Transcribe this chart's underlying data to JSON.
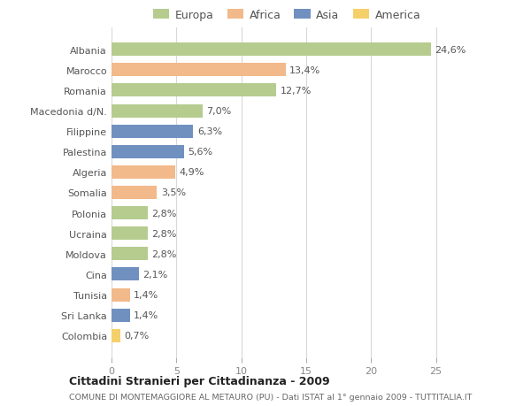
{
  "countries": [
    "Albania",
    "Marocco",
    "Romania",
    "Macedonia d/N.",
    "Filippine",
    "Palestina",
    "Algeria",
    "Somalia",
    "Polonia",
    "Ucraina",
    "Moldova",
    "Cina",
    "Tunisia",
    "Sri Lanka",
    "Colombia"
  ],
  "values": [
    24.6,
    13.4,
    12.7,
    7.0,
    6.3,
    5.6,
    4.9,
    3.5,
    2.8,
    2.8,
    2.8,
    2.1,
    1.4,
    1.4,
    0.7
  ],
  "labels": [
    "24,6%",
    "13,4%",
    "12,7%",
    "7,0%",
    "6,3%",
    "5,6%",
    "4,9%",
    "3,5%",
    "2,8%",
    "2,8%",
    "2,8%",
    "2,1%",
    "1,4%",
    "1,4%",
    "0,7%"
  ],
  "continents": [
    "Europa",
    "Africa",
    "Europa",
    "Europa",
    "Asia",
    "Asia",
    "Africa",
    "Africa",
    "Europa",
    "Europa",
    "Europa",
    "Asia",
    "Africa",
    "Asia",
    "America"
  ],
  "colors": {
    "Europa": "#b5cc8e",
    "Africa": "#f2b98a",
    "Asia": "#7090c0",
    "America": "#f5d06a"
  },
  "title": "Cittadini Stranieri per Cittadinanza - 2009",
  "subtitle": "COMUNE DI MONTEMAGGIORE AL METAURO (PU) - Dati ISTAT al 1° gennaio 2009 - TUTTITALIA.IT",
  "xlim": [
    0,
    27
  ],
  "xticks": [
    0,
    5,
    10,
    15,
    20,
    25
  ],
  "background_color": "#ffffff",
  "plot_bg": "#ffffff",
  "grid_color": "#d8d8d8"
}
